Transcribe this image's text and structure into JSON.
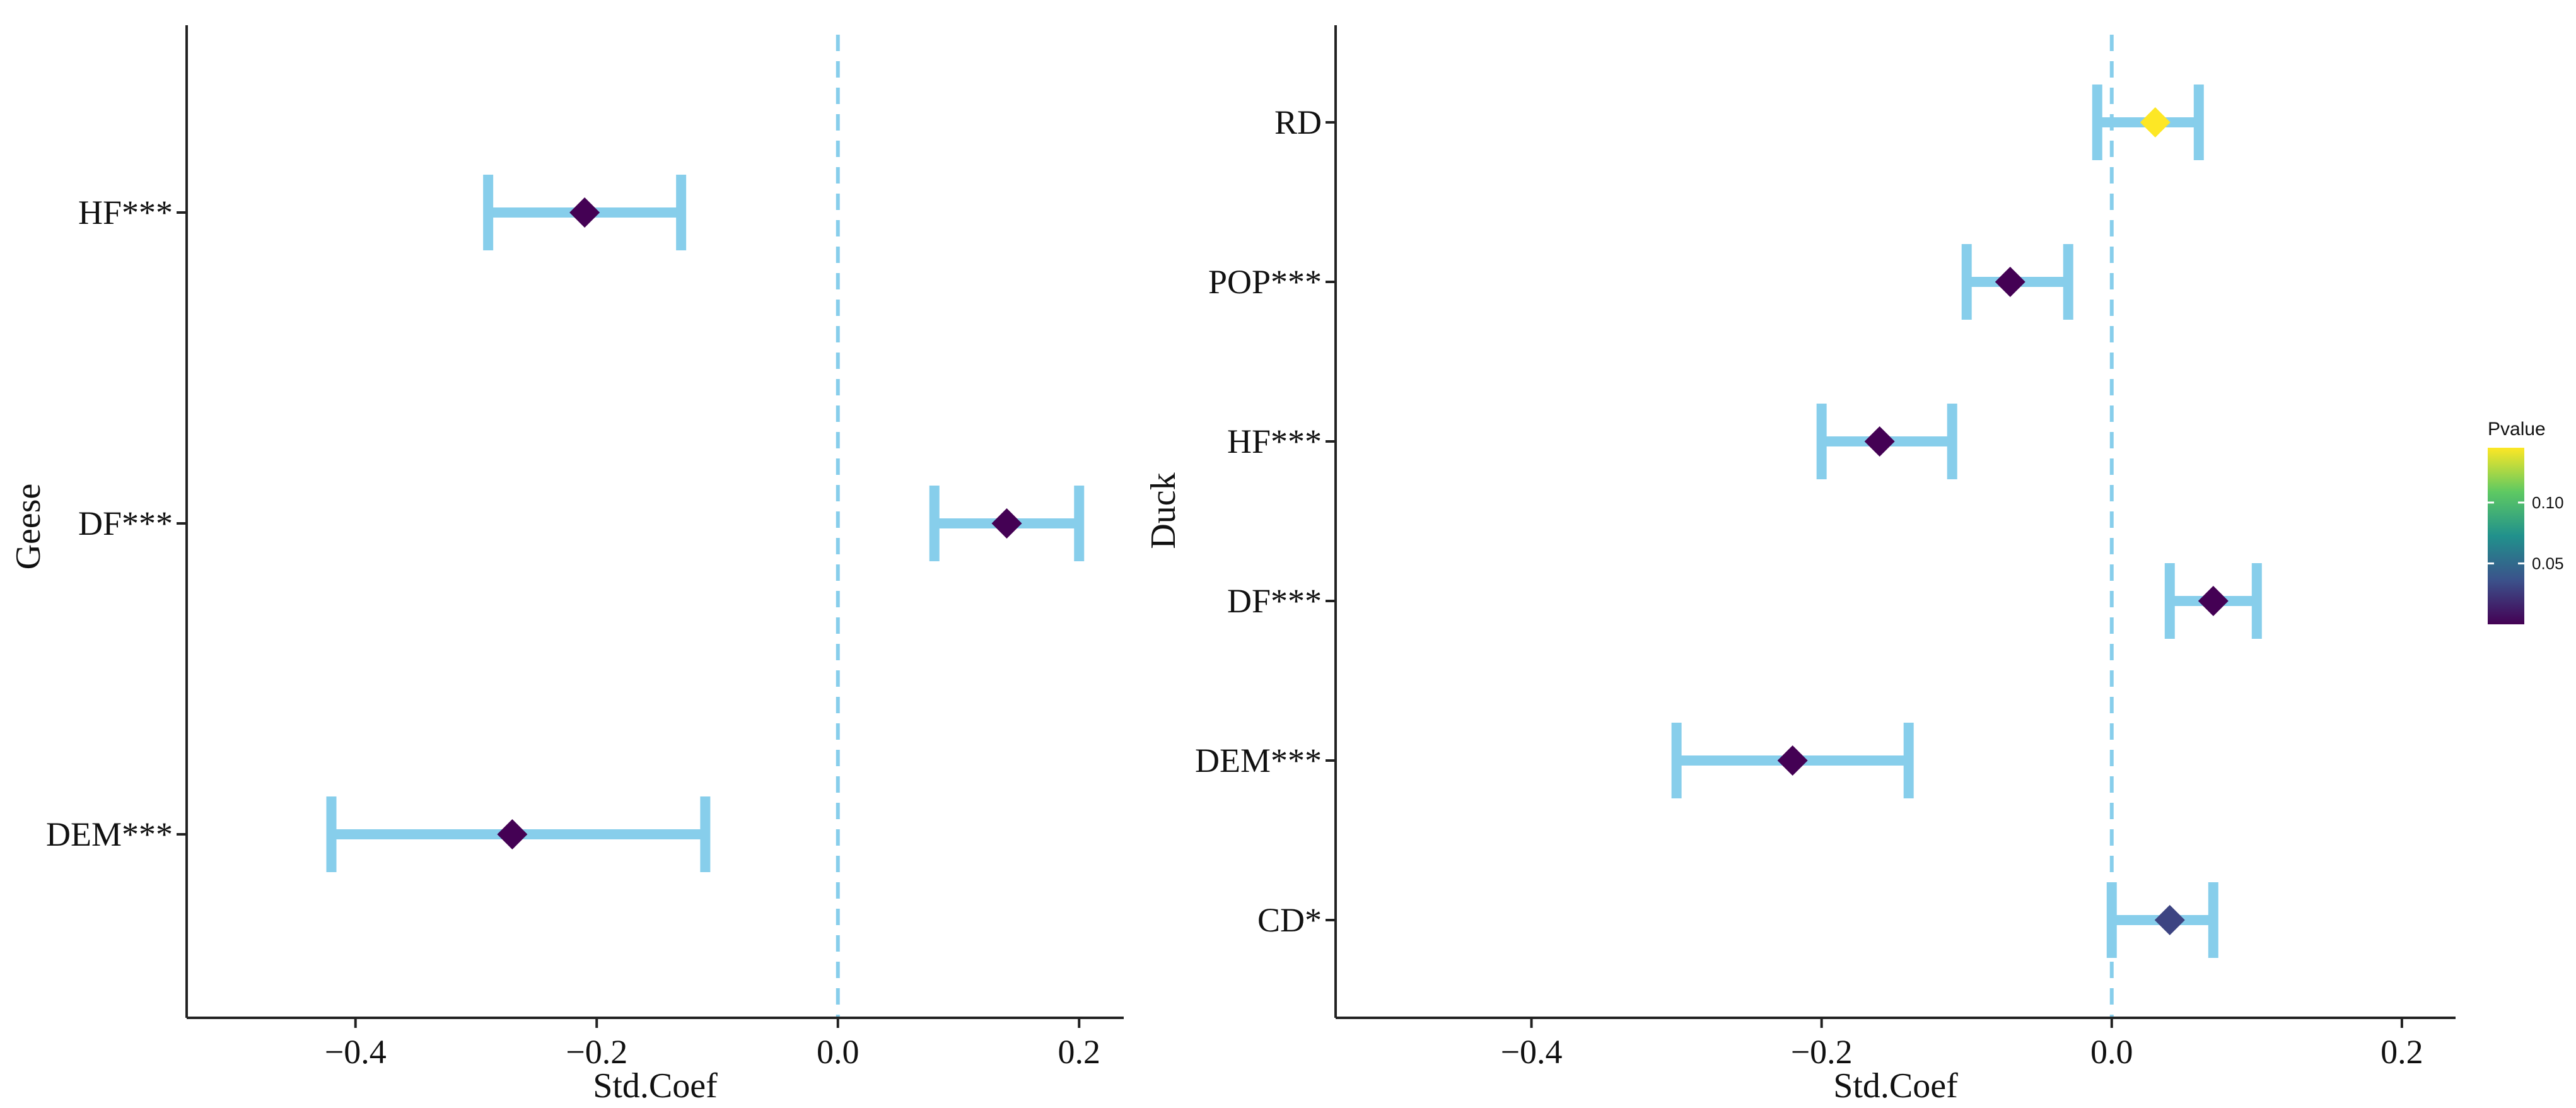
{
  "chart_data": [
    {
      "type": "scatter",
      "xlabel": "Std.Coef",
      "ylabel": "Geese",
      "xlim": [
        -0.54,
        0.237
      ],
      "xticks": [
        "-0.4",
        "-0.2",
        "0.0",
        "0.2"
      ],
      "xtick_values": [
        -0.4,
        -0.2,
        0.0,
        0.2
      ],
      "reference_line": 0.0,
      "categories": [
        "HF***",
        "DF***",
        "DEM***"
      ],
      "estimate": [
        -0.21,
        0.14,
        -0.27
      ],
      "lower": [
        -0.29,
        0.08,
        -0.42
      ],
      "upper": [
        -0.13,
        0.2,
        -0.11
      ],
      "pvalue": [
        0.0,
        0.0,
        0.0
      ]
    },
    {
      "type": "scatter",
      "xlabel": "Std.Coef",
      "ylabel": "Duck",
      "xlim": [
        -0.535,
        0.237
      ],
      "xticks": [
        "-0.4",
        "-0.2",
        "0.0",
        "0.2"
      ],
      "xtick_values": [
        -0.4,
        -0.2,
        0.0,
        0.2
      ],
      "reference_line": 0.0,
      "categories": [
        "RD",
        "POP***",
        "HF***",
        "DF***",
        "DEM***",
        "CD*"
      ],
      "estimate": [
        0.03,
        -0.07,
        -0.16,
        0.07,
        -0.22,
        0.04
      ],
      "lower": [
        -0.01,
        -0.1,
        -0.2,
        0.04,
        -0.3,
        0.0
      ],
      "upper": [
        0.06,
        -0.03,
        -0.11,
        0.1,
        -0.14,
        0.07
      ],
      "pvalue": [
        0.145,
        0.0,
        0.0,
        0.0,
        0.0,
        0.03
      ]
    }
  ],
  "legend": {
    "title": "Pvalue",
    "ticks": [
      "0.10",
      "0.05"
    ],
    "tick_values": [
      0.1,
      0.05
    ],
    "range": [
      0.0,
      0.145
    ],
    "colors": [
      "#440154",
      "#3b528b",
      "#21918c",
      "#5ec962",
      "#fde725"
    ]
  },
  "style": {
    "errorbar_color": "#87ceeb",
    "reference_line_color": "#87ceeb",
    "axis_color": "#222222"
  }
}
